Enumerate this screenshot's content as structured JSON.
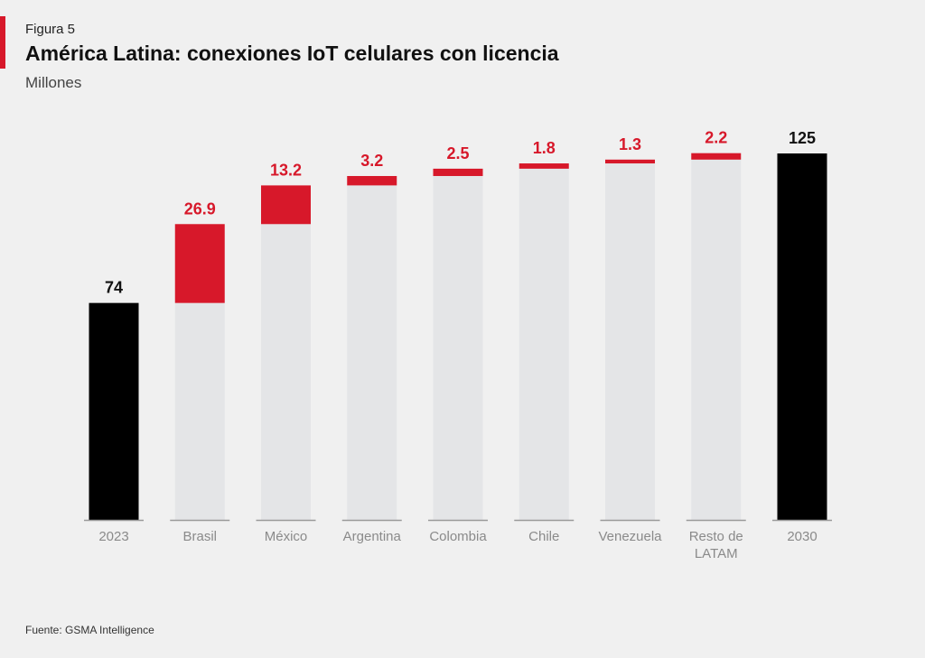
{
  "header": {
    "figure_label": "Figura 5",
    "title": "América Latina: conexiones IoT celulares con licencia",
    "subtitle": "Millones"
  },
  "footer": {
    "source": "Fuente: GSMA Intelligence"
  },
  "colors": {
    "total": "#000000",
    "increment": "#d7182a",
    "base": "#e4e5e7",
    "axis": "#9a9a9a",
    "category_text": "#8a8a8a",
    "total_label": "#111111"
  },
  "chart_data": {
    "type": "bar",
    "subtype": "waterfall",
    "title": "América Latina: conexiones IoT celulares con licencia",
    "ylabel": "Millones",
    "categories": [
      [
        "2023"
      ],
      [
        "Brasil"
      ],
      [
        "México"
      ],
      [
        "Argentina"
      ],
      [
        "Colombia"
      ],
      [
        "Chile"
      ],
      [
        "Venezuela"
      ],
      [
        "Resto de",
        "LATAM"
      ],
      [
        "2030"
      ]
    ],
    "values": [
      74,
      26.9,
      13.2,
      3.2,
      2.5,
      1.8,
      1.3,
      2.2,
      125
    ],
    "value_labels": [
      "74",
      "26.9",
      "13.2",
      "3.2",
      "2.5",
      "1.8",
      "1.3",
      "2.2",
      "125"
    ],
    "kinds": [
      "total",
      "increment",
      "increment",
      "increment",
      "increment",
      "increment",
      "increment",
      "increment",
      "total"
    ],
    "ylim": [
      0,
      125
    ],
    "grid": false,
    "legend": "none"
  }
}
